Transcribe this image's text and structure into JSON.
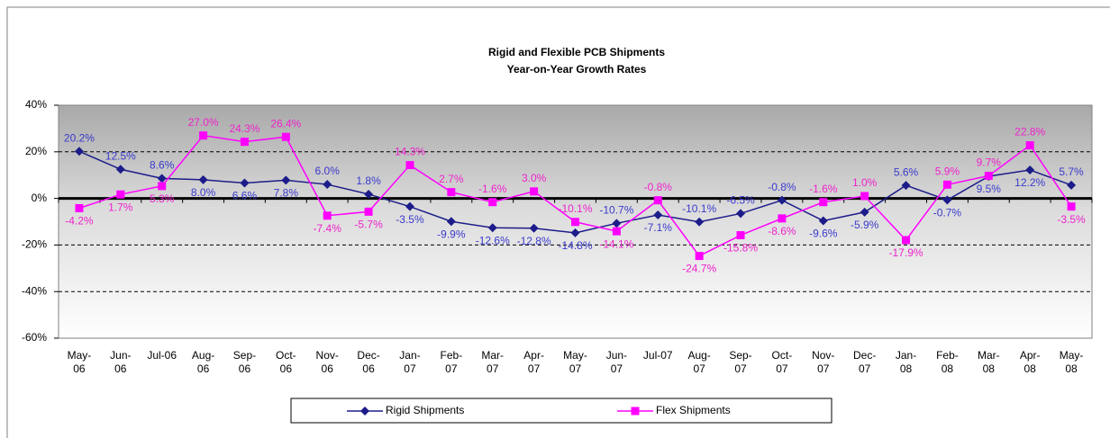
{
  "chart_data": {
    "type": "line",
    "title": "Rigid and Flexible PCB Shipments",
    "subtitle": "Year-on-Year Growth Rates",
    "categories": [
      "May-06",
      "Jun-06",
      "Jul-06",
      "Aug-06",
      "Sep-06",
      "Oct-06",
      "Nov-06",
      "Dec-06",
      "Jan-07",
      "Feb-07",
      "Mar-07",
      "Apr-07",
      "May-07",
      "Jun-07",
      "Jul-07",
      "Aug-07",
      "Sep-07",
      "Oct-07",
      "Nov-07",
      "Dec-07",
      "Jan-08",
      "Feb-08",
      "Mar-08",
      "Apr-08",
      "May-08"
    ],
    "series": [
      {
        "name": "Rigid Shipments",
        "color": "#1c1c8a",
        "label_color": "#3a3acc",
        "marker": "diamond",
        "values": [
          20.2,
          12.5,
          8.6,
          8.0,
          6.6,
          7.8,
          6.0,
          1.8,
          -3.5,
          -9.9,
          -12.6,
          -12.8,
          -14.8,
          -10.7,
          -7.1,
          -10.1,
          -6.5,
          -0.8,
          -9.6,
          -5.9,
          5.6,
          -0.7,
          9.5,
          12.2,
          5.7
        ],
        "value_labels": [
          "20.2%",
          "12.5%",
          "8.6%",
          "8.0%",
          "6.6%",
          "7.8%",
          "6.0%",
          "1.8%",
          "-3.5%",
          "-9.9%",
          "-12.6%",
          "-12.8%",
          "-14.8%",
          "-10.7%",
          "-7.1%",
          "-10.1%",
          "-6.5%",
          "-0.8%",
          "-9.6%",
          "-5.9%",
          "5.6%",
          "-0.7%",
          "9.5%",
          "12.2%",
          "5.7%"
        ]
      },
      {
        "name": "Flex Shipments",
        "color": "#ff00ff",
        "label_color": "#ee22cc",
        "marker": "square",
        "values": [
          -4.2,
          1.7,
          5.3,
          27.0,
          24.3,
          26.4,
          -7.4,
          -5.7,
          14.3,
          2.7,
          -1.6,
          3.0,
          -10.1,
          -14.1,
          -0.8,
          -24.7,
          -15.8,
          -8.6,
          -1.6,
          1.0,
          -17.9,
          5.9,
          9.7,
          22.8,
          -3.5
        ],
        "value_labels": [
          "-4.2%",
          "1.7%",
          "5.3%",
          "27.0%",
          "24.3%",
          "26.4%",
          "-7.4%",
          "-5.7%",
          "14.3%",
          "2.7%",
          "-1.6%",
          "3.0%",
          "-10.1%",
          "-14.1%",
          "-0.8%",
          "-24.7%",
          "-15.8%",
          "-8.6%",
          "-1.6%",
          "1.0%",
          "-17.9%",
          "5.9%",
          "9.7%",
          "22.8%",
          "-3.5%"
        ]
      }
    ],
    "ylim": [
      -60,
      40
    ],
    "yticks": [
      {
        "value": -60,
        "label": "-60%"
      },
      {
        "value": -40,
        "label": "-40%"
      },
      {
        "value": -20,
        "label": "-20%"
      },
      {
        "value": 0,
        "label": "0%"
      },
      {
        "value": 20,
        "label": "20%"
      },
      {
        "value": 40,
        "label": "40%"
      }
    ],
    "grid": true,
    "legend": "bottom"
  }
}
